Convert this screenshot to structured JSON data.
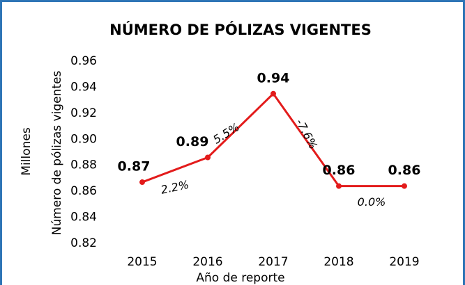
{
  "chart_data": {
    "type": "line",
    "title": "NÚMERO DE PÓLIZAS VIGENTES",
    "x_label": "Año de reporte",
    "y_label": "Número de pólizas vigentes",
    "y_unit": "Millones",
    "categories": [
      "2015",
      "2016",
      "2017",
      "2018",
      "2019"
    ],
    "series": [
      {
        "name": "Número de pólizas vigentes",
        "color": "#e31b1b",
        "values": [
          0.867,
          0.886,
          0.935,
          0.864,
          0.864
        ],
        "value_labels": [
          "0.87",
          "0.89",
          "0.94",
          "0.86",
          "0.86"
        ]
      }
    ],
    "segment_labels": [
      "2.2%",
      "5.5%",
      "-7.6%",
      "0.0%"
    ],
    "ylim": [
      0.82,
      0.96
    ],
    "yticks": [
      0.82,
      0.84,
      0.86,
      0.88,
      {
        "value": 0.9,
        "label": "0.90"
      },
      0.92,
      0.94,
      0.96
    ],
    "grid": false
  }
}
